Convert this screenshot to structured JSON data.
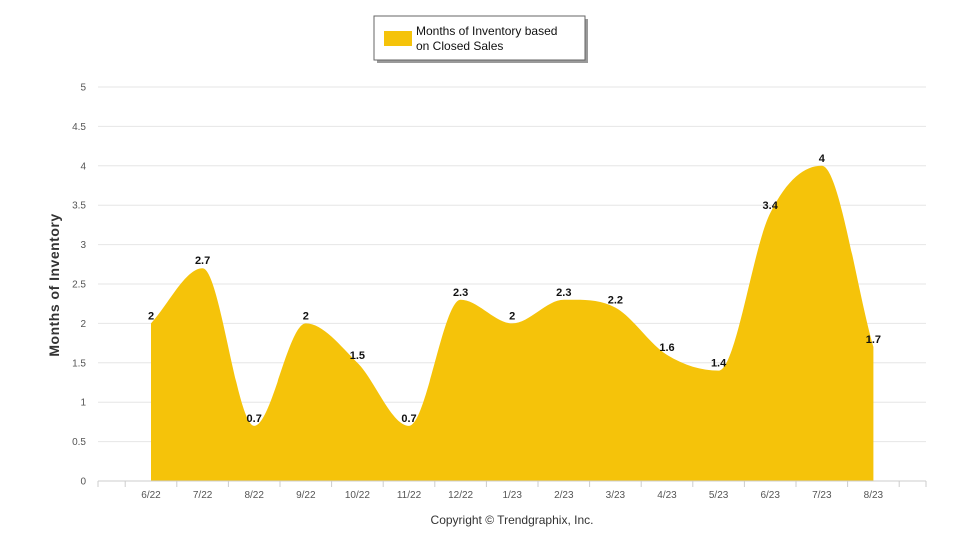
{
  "chart_data": {
    "type": "area",
    "categories": [
      "6/22",
      "7/22",
      "8/22",
      "9/22",
      "10/22",
      "11/22",
      "12/22",
      "1/23",
      "2/23",
      "3/23",
      "4/23",
      "5/23",
      "6/23",
      "7/23",
      "8/23"
    ],
    "series": [
      {
        "name": "Months of Inventory based on Closed Sales",
        "legend_lines": [
          "Months of Inventory based",
          "on Closed Sales"
        ],
        "values": [
          2,
          2.7,
          0.7,
          2,
          1.5,
          0.7,
          2.3,
          2,
          2.3,
          2.2,
          1.6,
          1.4,
          3.4,
          4,
          1.7
        ],
        "labels": [
          "2",
          "2.7",
          "0.7",
          "2",
          "1.5",
          "0.7",
          "2.3",
          "2",
          "2.3",
          "2.2",
          "1.6",
          "1.4",
          "3.4",
          "4",
          "1.7"
        ],
        "color": "#F5C30A"
      }
    ],
    "ylabel": "Months of Inventory",
    "ylim": [
      0,
      5
    ],
    "yticks": [
      0,
      0.5,
      1,
      1.5,
      2,
      2.5,
      3,
      3.5,
      4,
      4.5,
      5
    ],
    "ytick_labels": [
      "0",
      "0.5",
      "1",
      "1.5",
      "2",
      "2.5",
      "3",
      "3.5",
      "4",
      "4.5",
      "5"
    ],
    "grid": true,
    "legend_position": "top-center"
  },
  "credit": "Copyright © Trendgraphix, Inc.",
  "colors": {
    "area": "#F5C30A",
    "grid": "#e6e6e6",
    "axis": "#cccccc"
  }
}
